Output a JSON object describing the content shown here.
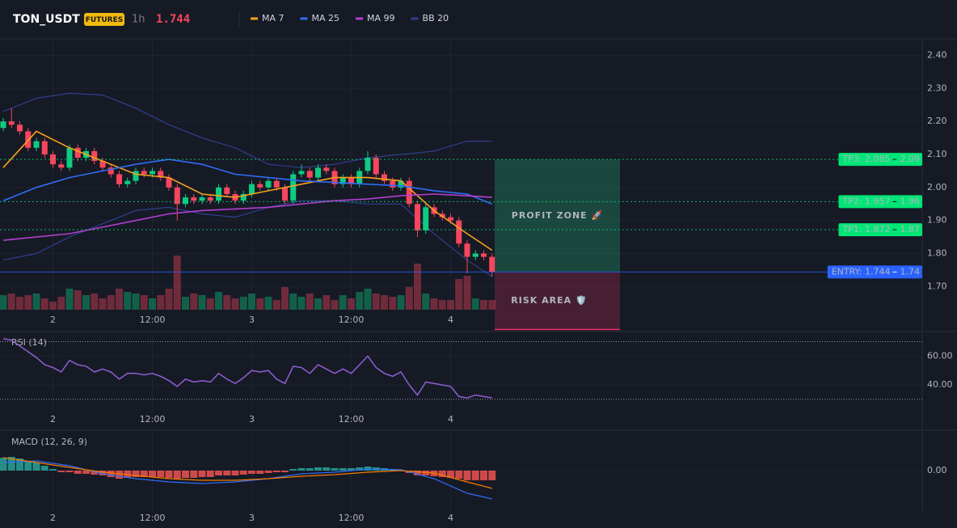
{
  "header": {
    "symbol": "TON_USDT",
    "badge": "FUTURES",
    "interval": "1h",
    "price": "1.744"
  },
  "chart_data": [
    {
      "type": "candlestick",
      "categories": [
        null,
        null,
        null,
        null,
        null,
        null,
        "2",
        null,
        null,
        null,
        null,
        null,
        null,
        null,
        null,
        null,
        null,
        null,
        "12:00",
        null,
        null,
        null,
        null,
        null,
        null,
        null,
        null,
        null,
        null,
        null,
        "3",
        null,
        null,
        null,
        null,
        null,
        null,
        null,
        null,
        null,
        null,
        null,
        "12:00",
        null,
        null,
        null,
        null,
        null,
        null,
        null,
        null,
        null,
        null,
        null,
        "4",
        null,
        null,
        null,
        null,
        null
      ],
      "open": [
        2.18,
        2.2,
        2.19,
        2.17,
        2.12,
        2.14,
        2.1,
        2.07,
        2.06,
        2.12,
        2.09,
        2.11,
        2.08,
        2.06,
        2.04,
        2.01,
        2.02,
        2.05,
        2.04,
        2.05,
        2.03,
        2.0,
        1.95,
        1.97,
        1.96,
        1.97,
        1.96,
        2.0,
        1.98,
        1.96,
        1.98,
        2.01,
        2.0,
        2.02,
        2.0,
        1.96,
        2.04,
        2.05,
        2.03,
        2.06,
        2.05,
        2.01,
        2.03,
        2.01,
        2.05,
        2.09,
        2.04,
        2.02,
        2.0,
        2.02,
        1.95,
        1.87,
        1.94,
        1.92,
        1.91,
        1.9,
        1.83,
        1.79,
        1.8,
        1.79
      ],
      "high": [
        2.21,
        2.24,
        2.2,
        2.18,
        2.15,
        2.15,
        2.11,
        2.08,
        2.13,
        2.13,
        2.12,
        2.12,
        2.09,
        2.07,
        2.05,
        2.03,
        2.06,
        2.06,
        2.06,
        2.06,
        2.04,
        2.01,
        1.98,
        1.98,
        1.98,
        1.98,
        2.01,
        2.01,
        1.99,
        1.99,
        2.02,
        2.02,
        2.03,
        2.03,
        2.01,
        2.05,
        2.07,
        2.06,
        2.07,
        2.07,
        2.06,
        2.04,
        2.04,
        2.06,
        2.11,
        2.1,
        2.05,
        2.03,
        2.03,
        2.03,
        1.96,
        1.95,
        1.95,
        1.93,
        1.92,
        1.91,
        1.84,
        1.81,
        1.81,
        1.8
      ],
      "low": [
        2.17,
        2.18,
        2.16,
        2.11,
        2.11,
        2.09,
        2.06,
        2.05,
        2.05,
        2.08,
        2.08,
        2.07,
        2.05,
        2.03,
        2.0,
        2.0,
        2.01,
        2.03,
        2.03,
        2.02,
        1.99,
        1.9,
        1.94,
        1.95,
        1.95,
        1.95,
        1.95,
        1.97,
        1.95,
        1.95,
        1.97,
        1.99,
        1.99,
        1.99,
        1.95,
        1.95,
        2.03,
        2.02,
        2.02,
        2.04,
        2.0,
        2.0,
        2.0,
        2.0,
        2.04,
        2.03,
        2.01,
        1.99,
        1.99,
        1.94,
        1.85,
        1.86,
        1.91,
        1.9,
        1.89,
        1.82,
        1.74,
        1.78,
        1.78,
        1.73
      ],
      "close": [
        2.2,
        2.19,
        2.17,
        2.12,
        2.14,
        2.1,
        2.07,
        2.06,
        2.12,
        2.09,
        2.11,
        2.08,
        2.06,
        2.04,
        2.01,
        2.02,
        2.05,
        2.04,
        2.05,
        2.03,
        2.0,
        1.95,
        1.97,
        1.96,
        1.97,
        1.96,
        2.0,
        1.98,
        1.96,
        1.98,
        2.01,
        2.0,
        2.02,
        2.0,
        1.96,
        2.04,
        2.05,
        2.03,
        2.06,
        2.05,
        2.01,
        2.03,
        2.01,
        2.05,
        2.09,
        2.04,
        2.02,
        2.0,
        2.02,
        1.95,
        1.87,
        1.94,
        1.92,
        1.91,
        1.9,
        1.83,
        1.79,
        1.8,
        1.79,
        1.744
      ],
      "up_color": "#0ecb81",
      "down_color": "#f6465d",
      "volume": {
        "values": [
          18,
          20,
          16,
          18,
          20,
          14,
          10,
          16,
          26,
          24,
          18,
          20,
          14,
          18,
          26,
          22,
          20,
          18,
          14,
          18,
          26,
          67,
          16,
          20,
          18,
          14,
          22,
          18,
          14,
          16,
          20,
          14,
          16,
          12,
          28,
          20,
          16,
          20,
          14,
          18,
          12,
          18,
          14,
          22,
          26,
          20,
          18,
          16,
          18,
          28,
          57,
          20,
          14,
          12,
          12,
          38,
          42,
          14,
          12,
          12
        ],
        "ylim": [
          0,
          100
        ]
      },
      "series": [
        {
          "name": "MA 7",
          "color": "#f7a21b",
          "x": [
            0,
            4,
            8,
            12,
            16,
            20,
            24,
            28,
            32,
            36,
            40,
            44,
            48,
            52,
            56,
            59
          ],
          "values": [
            2.06,
            2.17,
            2.12,
            2.08,
            2.04,
            2.03,
            1.98,
            1.97,
            1.99,
            2.01,
            2.03,
            2.03,
            2.02,
            1.93,
            1.86,
            1.81
          ]
        },
        {
          "name": "MA 25",
          "color": "#2f6df6",
          "x": [
            0,
            4,
            8,
            12,
            16,
            20,
            24,
            28,
            32,
            36,
            40,
            44,
            48,
            52,
            56,
            59
          ],
          "values": [
            1.96,
            2.0,
            2.03,
            2.05,
            2.07,
            2.085,
            2.07,
            2.04,
            2.03,
            2.02,
            2.015,
            2.01,
            2.005,
            1.99,
            1.98,
            1.95
          ]
        },
        {
          "name": "MA 99",
          "color": "#b13fd1",
          "x": [
            0,
            4,
            8,
            12,
            16,
            20,
            24,
            28,
            32,
            36,
            40,
            44,
            48,
            52,
            56,
            59
          ],
          "values": [
            1.84,
            1.85,
            1.86,
            1.88,
            1.9,
            1.92,
            1.93,
            1.935,
            1.94,
            1.95,
            1.96,
            1.965,
            1.975,
            1.98,
            1.975,
            1.97
          ]
        },
        {
          "name": "BB 20",
          "color": "#2f3f8f",
          "x": [
            0,
            4,
            8,
            12,
            16,
            20,
            24,
            28,
            32,
            36,
            40,
            44,
            48,
            52,
            56,
            59
          ],
          "upper": [
            2.23,
            2.27,
            2.285,
            2.28,
            2.24,
            2.19,
            2.15,
            2.12,
            2.07,
            2.06,
            2.07,
            2.09,
            2.1,
            2.11,
            2.14,
            2.14
          ],
          "lower": [
            1.78,
            1.8,
            1.85,
            1.89,
            1.93,
            1.94,
            1.92,
            1.91,
            1.94,
            1.96,
            1.96,
            1.95,
            1.95,
            1.86,
            1.78,
            1.73
          ]
        }
      ],
      "levels": [
        {
          "label": "TP3: 2.085",
          "value": 2.085,
          "axis_label": "2.09",
          "color": "#00e676",
          "style": "dotted"
        },
        {
          "label": "TP2: 1.957",
          "value": 1.957,
          "axis_label": "1.96",
          "color": "#00e676",
          "style": "dotted"
        },
        {
          "label": "TP1: 1.872",
          "value": 1.872,
          "axis_label": "1.87",
          "color": "#00e676",
          "style": "dotted"
        },
        {
          "label": "ENTRY: 1.744",
          "value": 1.744,
          "axis_label": "1.74",
          "color": "#2962ff",
          "style": "solid"
        }
      ],
      "zones": {
        "profit": {
          "label": "PROFIT ZONE 🚀",
          "color": "#26c281"
        },
        "risk": {
          "label": "RISK AREA 🛡️",
          "color": "#f0306a",
          "bottom": 1.57
        }
      },
      "ylim": [
        1.63,
        2.45
      ],
      "yticks": [
        {
          "value": 1.7,
          "label": "1.70"
        },
        {
          "value": 1.8,
          "label": "1.80"
        },
        {
          "value": 1.9,
          "label": "1.90"
        },
        {
          "value": 2.0,
          "label": "2.00"
        },
        {
          "value": 2.1,
          "label": "2.10"
        },
        {
          "value": 2.2,
          "label": "2.20"
        },
        {
          "value": 2.3,
          "label": "2.30"
        },
        {
          "value": 2.4,
          "label": "2.40"
        }
      ],
      "grid": true
    },
    {
      "type": "line",
      "title": "RSI (14)",
      "color": "#8e5fd4",
      "values": [
        72,
        71,
        67,
        63,
        59,
        54,
        52,
        49,
        57,
        54,
        53,
        49,
        51,
        49,
        44,
        48,
        48,
        47,
        48,
        46,
        43,
        39,
        44,
        42,
        43,
        42,
        48,
        44,
        41,
        45,
        50,
        49,
        50,
        44,
        41,
        53,
        52,
        48,
        54,
        51,
        48,
        51,
        48,
        54,
        60,
        52,
        48,
        46,
        49,
        40,
        33,
        42,
        41,
        40,
        39,
        32,
        31,
        33,
        32,
        31
      ],
      "levels": [
        70,
        30
      ],
      "ylim": [
        21,
        77
      ],
      "yticks": [
        {
          "value": 40,
          "label": "40.00"
        },
        {
          "value": 60,
          "label": "60.00"
        }
      ],
      "grid": true
    },
    {
      "type": "macd",
      "title": "MACD (12, 26, 9)",
      "histogram": {
        "up_color": "#26a69a",
        "down_color": "#ef5350",
        "values": [
          0.016,
          0.017,
          0.015,
          0.012,
          0.01,
          0.006,
          0.002,
          -0.002,
          -0.002,
          -0.004,
          -0.004,
          -0.005,
          -0.006,
          -0.008,
          -0.01,
          -0.009,
          -0.008,
          -0.008,
          -0.008,
          -0.008,
          -0.009,
          -0.01,
          -0.009,
          -0.009,
          -0.008,
          -0.008,
          -0.006,
          -0.006,
          -0.006,
          -0.005,
          -0.004,
          -0.004,
          -0.003,
          -0.002,
          -0.002,
          0.002,
          0.003,
          0.003,
          0.004,
          0.004,
          0.003,
          0.003,
          0.003,
          0.004,
          0.005,
          0.004,
          0.003,
          0.002,
          0.001,
          -0.003,
          -0.006,
          -0.006,
          -0.007,
          -0.008,
          -0.009,
          -0.01,
          -0.012,
          -0.012,
          -0.012,
          -0.012
        ]
      },
      "series": [
        {
          "color": "#2f6df6",
          "x": [
            0,
            4,
            8,
            12,
            16,
            20,
            24,
            28,
            32,
            36,
            40,
            44,
            48,
            52,
            56,
            59
          ],
          "values": [
            0.01,
            0.012,
            0.006,
            -0.004,
            -0.01,
            -0.014,
            -0.016,
            -0.014,
            -0.01,
            -0.004,
            -0.002,
            0.002,
            0.001,
            -0.01,
            -0.028,
            -0.035
          ]
        },
        {
          "color": "#f57c00",
          "x": [
            0,
            4,
            8,
            12,
            16,
            20,
            24,
            28,
            32,
            36,
            40,
            44,
            48,
            52,
            56,
            59
          ],
          "values": [
            0.016,
            0.01,
            0.004,
            -0.002,
            -0.006,
            -0.01,
            -0.012,
            -0.012,
            -0.01,
            -0.007,
            -0.005,
            -0.002,
            0.0,
            -0.003,
            -0.014,
            -0.022
          ]
        }
      ],
      "ylim": [
        -0.05,
        0.049
      ],
      "yticks": [
        {
          "value": 0,
          "label": "0.00"
        }
      ],
      "grid": true
    }
  ]
}
